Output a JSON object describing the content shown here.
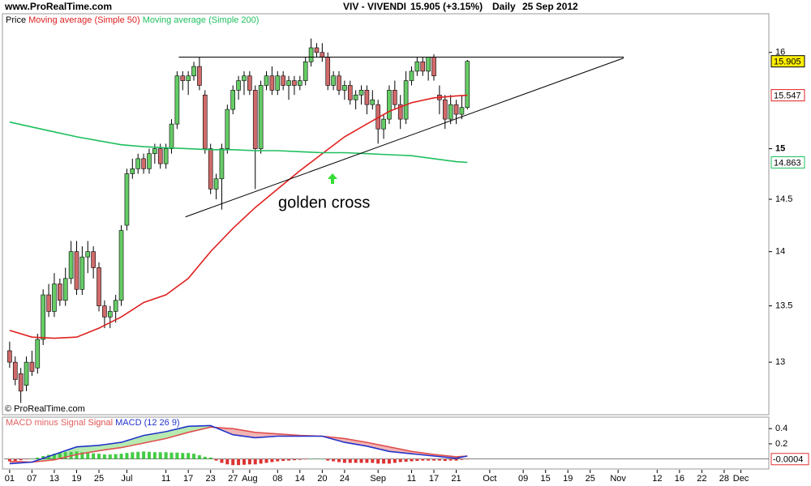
{
  "header": {
    "source": "www.ProRealTime.com",
    "title": "VIV - VIVENDI",
    "quote": "15.905 (+3.15%)",
    "period": "Daily",
    "date": "25 Sep 2012"
  },
  "chart_data": [
    {
      "type": "candlestick",
      "copyright": "© ProRealTime.com",
      "annotation": "golden cross",
      "log_scale": true,
      "xlim": [
        -1,
        136
      ],
      "ylim": [
        12.55,
        16.42
      ],
      "yticks": [
        13,
        13.5,
        14,
        14.5,
        15,
        16
      ],
      "up_color": "#66cc66",
      "down_color": "#d06a6a",
      "ohlc": {
        "name": "Price",
        "x": [
          0,
          1,
          2,
          3,
          4,
          5,
          6,
          7,
          8,
          9,
          10,
          11,
          12,
          13,
          14,
          15,
          16,
          17,
          18,
          19,
          20,
          21,
          22,
          23,
          24,
          25,
          26,
          27,
          28,
          29,
          30,
          31,
          32,
          33,
          34,
          35,
          36,
          37,
          38,
          39,
          40,
          41,
          42,
          43,
          44,
          45,
          46,
          47,
          48,
          49,
          50,
          51,
          52,
          53,
          54,
          55,
          56,
          57,
          58,
          59,
          60,
          61,
          62,
          63,
          64,
          65,
          66,
          67,
          68,
          69,
          70,
          71,
          72,
          73,
          74,
          75,
          76,
          77,
          78,
          79,
          80,
          81,
          82
        ],
        "open": [
          13.1,
          13.0,
          12.9,
          12.8,
          13.0,
          12.95,
          13.2,
          13.6,
          13.45,
          13.7,
          13.55,
          13.75,
          14.0,
          13.65,
          13.95,
          14.0,
          13.85,
          13.5,
          13.4,
          13.45,
          13.55,
          14.25,
          14.75,
          14.8,
          14.9,
          14.8,
          14.95,
          15.0,
          14.85,
          15.0,
          15.25,
          15.75,
          15.7,
          15.75,
          15.85,
          15.55,
          15.0,
          14.6,
          14.7,
          15.0,
          15.4,
          15.6,
          15.7,
          15.75,
          15.6,
          15.0,
          15.65,
          15.75,
          15.6,
          15.75,
          15.65,
          15.7,
          15.65,
          15.7,
          15.9,
          16.05,
          16.0,
          15.95,
          15.65,
          15.75,
          15.6,
          15.65,
          15.5,
          15.55,
          15.6,
          15.45,
          15.45,
          15.2,
          15.3,
          15.6,
          15.45,
          15.3,
          15.7,
          15.8,
          15.9,
          15.8,
          15.95,
          15.55,
          15.5,
          15.3,
          15.45,
          15.35,
          15.42
        ],
        "high": [
          13.18,
          13.05,
          12.95,
          13.05,
          13.1,
          13.25,
          13.65,
          13.7,
          13.8,
          13.75,
          13.85,
          14.1,
          14.1,
          14.05,
          14.1,
          14.05,
          13.9,
          13.55,
          13.5,
          13.6,
          14.25,
          14.8,
          14.9,
          14.95,
          14.95,
          15.0,
          15.05,
          15.05,
          15.05,
          15.3,
          15.8,
          15.8,
          15.8,
          15.9,
          15.95,
          15.6,
          15.05,
          14.75,
          15.05,
          15.45,
          15.65,
          15.75,
          15.8,
          15.8,
          15.65,
          15.7,
          15.8,
          15.85,
          15.8,
          15.8,
          15.75,
          15.75,
          15.75,
          15.95,
          16.15,
          16.1,
          16.1,
          16.0,
          15.8,
          15.8,
          15.7,
          15.7,
          15.6,
          15.65,
          15.65,
          15.6,
          15.5,
          15.35,
          15.65,
          15.7,
          15.55,
          15.8,
          15.85,
          15.95,
          15.95,
          15.95,
          15.98,
          15.65,
          15.55,
          15.55,
          15.5,
          15.55,
          15.92
        ],
        "low": [
          12.95,
          12.8,
          12.65,
          12.75,
          12.88,
          12.9,
          13.15,
          13.4,
          13.4,
          13.5,
          13.5,
          13.7,
          13.6,
          13.6,
          13.8,
          13.75,
          13.45,
          13.3,
          13.3,
          13.35,
          13.5,
          14.2,
          14.7,
          14.75,
          14.75,
          14.75,
          14.85,
          14.8,
          14.8,
          14.95,
          15.2,
          15.6,
          15.55,
          15.7,
          15.6,
          14.95,
          14.55,
          14.5,
          14.4,
          14.95,
          15.35,
          15.5,
          15.55,
          15.55,
          14.6,
          14.95,
          15.6,
          15.55,
          15.55,
          15.6,
          15.5,
          15.55,
          15.6,
          15.65,
          15.85,
          15.95,
          15.9,
          15.6,
          15.6,
          15.55,
          15.5,
          15.45,
          15.4,
          15.45,
          15.35,
          15.4,
          15.05,
          15.1,
          15.25,
          15.4,
          15.2,
          15.25,
          15.65,
          15.75,
          15.75,
          15.7,
          15.7,
          15.35,
          15.2,
          15.25,
          15.25,
          15.3,
          15.4
        ],
        "close": [
          13.0,
          12.85,
          12.75,
          13.0,
          12.92,
          13.2,
          13.6,
          13.45,
          13.7,
          13.55,
          13.75,
          14.0,
          13.65,
          13.95,
          14.0,
          13.85,
          13.5,
          13.4,
          13.45,
          13.55,
          14.2,
          14.75,
          14.8,
          14.9,
          14.8,
          14.95,
          15.0,
          14.85,
          15.0,
          15.25,
          15.75,
          15.7,
          15.75,
          15.85,
          15.65,
          15.0,
          14.6,
          14.7,
          15.0,
          15.4,
          15.6,
          15.7,
          15.75,
          15.6,
          15.0,
          15.65,
          15.75,
          15.6,
          15.75,
          15.65,
          15.7,
          15.65,
          15.7,
          15.9,
          16.05,
          16.0,
          15.95,
          15.65,
          15.75,
          15.6,
          15.65,
          15.5,
          15.55,
          15.6,
          15.45,
          15.5,
          15.2,
          15.3,
          15.6,
          15.45,
          15.3,
          15.7,
          15.8,
          15.9,
          15.8,
          15.95,
          15.75,
          15.5,
          15.3,
          15.45,
          15.35,
          15.42,
          15.905
        ]
      },
      "series": [
        {
          "name": "Moving average (Simple 50)",
          "color": "#e02020",
          "x": [
            0,
            4,
            8,
            12,
            16,
            20,
            24,
            28,
            32,
            36,
            40,
            44,
            48,
            52,
            56,
            60,
            64,
            68,
            72,
            76,
            80,
            82
          ],
          "values": [
            13.28,
            13.22,
            13.21,
            13.22,
            13.3,
            13.4,
            13.53,
            13.6,
            13.75,
            14.0,
            14.22,
            14.42,
            14.6,
            14.78,
            14.95,
            15.12,
            15.25,
            15.38,
            15.47,
            15.52,
            15.54,
            15.547
          ]
        },
        {
          "name": "Moving average (Simple 200)",
          "color": "#1fbf5f",
          "x": [
            0,
            4,
            8,
            12,
            16,
            20,
            24,
            28,
            32,
            36,
            40,
            44,
            48,
            52,
            56,
            60,
            64,
            68,
            72,
            76,
            80,
            82
          ],
          "values": [
            15.27,
            15.22,
            15.17,
            15.12,
            15.08,
            15.04,
            15.02,
            15.01,
            15.0,
            14.99,
            14.99,
            14.98,
            14.98,
            14.97,
            14.96,
            14.96,
            14.95,
            14.94,
            14.93,
            14.9,
            14.87,
            14.863
          ]
        }
      ],
      "trendlines": [
        {
          "x": [
            30.3,
            110
          ],
          "y": [
            15.95,
            15.95
          ]
        },
        {
          "x": [
            31.5,
            110
          ],
          "y": [
            14.33,
            15.94
          ]
        }
      ]
    },
    {
      "type": "macd",
      "xlim": [
        -1,
        136
      ],
      "ylim": [
        -0.12,
        0.54
      ],
      "yticks": [
        0.2,
        0.4
      ],
      "fill_up_color": "#b6eab0",
      "fill_down_color": "#f2b4b4",
      "histogram": {
        "name": "MACD minus Signal",
        "color_up": "#44cc44",
        "color_down": "#dd3333",
        "values": [
          -0.03,
          -0.025,
          -0.015,
          -0.005,
          0.0,
          0.02,
          0.04,
          0.055,
          0.07,
          0.08,
          0.09,
          0.095,
          0.1,
          0.09,
          0.08,
          0.075,
          0.07,
          0.06,
          0.06,
          0.065,
          0.07,
          0.08,
          0.09,
          0.095,
          0.1,
          0.095,
          0.09,
          0.09,
          0.09,
          0.085,
          0.085,
          0.08,
          0.08,
          0.07,
          0.05,
          0.03,
          0.02,
          -0.02,
          -0.05,
          -0.07,
          -0.08,
          -0.08,
          -0.075,
          -0.07,
          -0.07,
          -0.06,
          -0.05,
          -0.04,
          -0.03,
          -0.025,
          -0.02,
          -0.015,
          -0.01,
          -0.005,
          0.0,
          0.0,
          0.0,
          -0.02,
          -0.03,
          -0.04,
          -0.05,
          -0.05,
          -0.05,
          -0.05,
          -0.05,
          -0.05,
          -0.06,
          -0.06,
          -0.06,
          -0.05,
          -0.04,
          -0.035,
          -0.03,
          -0.025,
          -0.02,
          -0.02,
          -0.02,
          -0.02,
          -0.025,
          -0.02,
          -0.02,
          -0.01,
          -0.0004
        ]
      },
      "series": [
        {
          "name": "Signal",
          "color": "#e05050",
          "x": [
            0,
            4,
            8,
            12,
            16,
            20,
            24,
            28,
            32,
            36,
            40,
            44,
            48,
            52,
            56,
            60,
            64,
            68,
            72,
            76,
            80,
            82
          ],
          "values": [
            -0.03,
            -0.04,
            -0.01,
            0.06,
            0.11,
            0.15,
            0.21,
            0.27,
            0.35,
            0.42,
            0.4,
            0.35,
            0.33,
            0.31,
            0.3,
            0.27,
            0.22,
            0.16,
            0.1,
            0.06,
            0.03,
            0.04
          ]
        },
        {
          "name": "MACD (12 26 9)",
          "color": "#2233cc",
          "x": [
            0,
            4,
            8,
            12,
            16,
            20,
            24,
            28,
            32,
            36,
            40,
            44,
            48,
            52,
            56,
            60,
            64,
            68,
            72,
            76,
            80,
            82
          ],
          "values": [
            -0.06,
            -0.04,
            0.06,
            0.16,
            0.18,
            0.22,
            0.31,
            0.36,
            0.43,
            0.44,
            0.32,
            0.28,
            0.3,
            0.3,
            0.3,
            0.22,
            0.17,
            0.1,
            0.07,
            0.04,
            0.01,
            0.04
          ]
        }
      ],
      "xticks": [
        {
          "value": 0,
          "label": "01"
        },
        {
          "value": 4,
          "label": "07"
        },
        {
          "value": 8,
          "label": "13"
        },
        {
          "value": 12,
          "label": "19"
        },
        {
          "value": 16,
          "label": "25"
        },
        {
          "value": 21,
          "label": "Jul"
        },
        {
          "value": 28,
          "label": "11"
        },
        {
          "value": 32,
          "label": "17"
        },
        {
          "value": 36,
          "label": "23"
        },
        {
          "value": 40,
          "label": "27"
        },
        {
          "value": 43,
          "label": "Aug"
        },
        {
          "value": 48,
          "label": "08"
        },
        {
          "value": 52,
          "label": "14"
        },
        {
          "value": 56,
          "label": "20"
        },
        {
          "value": 60,
          "label": "24"
        },
        {
          "value": 66,
          "label": "Sep"
        },
        {
          "value": 72,
          "label": "11"
        },
        {
          "value": 76,
          "label": "17"
        },
        {
          "value": 80,
          "label": "21"
        },
        {
          "value": 86,
          "label": "Oct"
        },
        {
          "value": 92,
          "label": "09"
        },
        {
          "value": 96,
          "label": "15"
        },
        {
          "value": 100,
          "label": "19"
        },
        {
          "value": 104,
          "label": "25"
        },
        {
          "value": 109,
          "label": "Nov"
        },
        {
          "value": 116,
          "label": "12"
        },
        {
          "value": 120,
          "label": "16"
        },
        {
          "value": 124,
          "label": "22"
        },
        {
          "value": 128,
          "label": "28"
        },
        {
          "value": 131,
          "label": "Dec"
        }
      ]
    }
  ]
}
